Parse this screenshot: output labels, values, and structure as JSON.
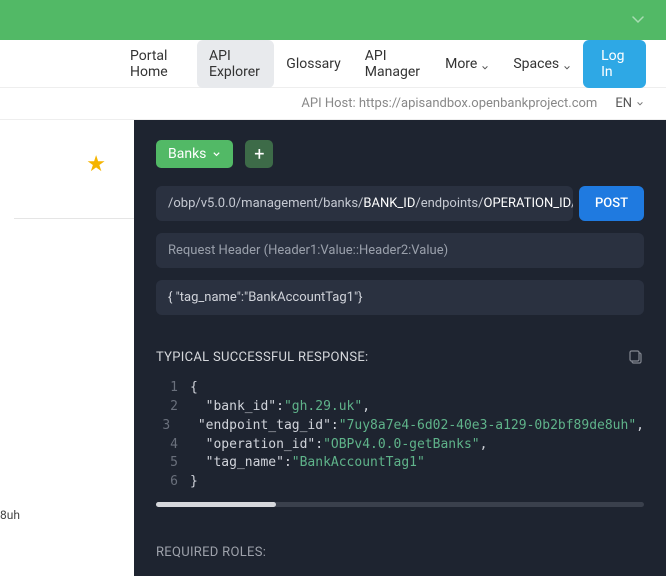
{
  "nav": {
    "items": [
      {
        "label": "Portal Home",
        "active": false
      },
      {
        "label": "API Explorer",
        "active": true
      },
      {
        "label": "Glossary",
        "active": false
      },
      {
        "label": "API Manager",
        "active": false
      },
      {
        "label": "More",
        "active": false,
        "dropdown": true
      },
      {
        "label": "Spaces",
        "active": false,
        "dropdown": true
      }
    ],
    "login": "Log In"
  },
  "subbar": {
    "api_host_label": "API Host: https://apisandbox.openbankproject.com",
    "lang": "EN"
  },
  "left": {
    "fragment": "8uh"
  },
  "controls": {
    "banks_label": "Banks",
    "plus": "+"
  },
  "request": {
    "path_segments": [
      {
        "t": "/obp/v5.0.0/management/banks/",
        "hl": false
      },
      {
        "t": "BANK_ID",
        "hl": true
      },
      {
        "t": "/endpoints/",
        "hl": false
      },
      {
        "t": "OPERATION_ID",
        "hl": true
      },
      {
        "t": "/tags",
        "hl": false
      }
    ],
    "method": "POST",
    "header_placeholder": "Request Header (Header1:Value::Header2:Value)",
    "body": "{  \"tag_name\":\"BankAccountTag1\"}"
  },
  "response": {
    "title": "TYPICAL SUCCESSFUL RESPONSE:",
    "lines": [
      {
        "n": "1",
        "tokens": [
          {
            "c": "brace",
            "t": "{"
          }
        ]
      },
      {
        "n": "2",
        "tokens": [
          {
            "c": "indent",
            "t": "  "
          },
          {
            "c": "key",
            "t": "\"bank_id\""
          },
          {
            "c": "punct",
            "t": ":"
          },
          {
            "c": "str",
            "t": "\"gh.29.uk\""
          },
          {
            "c": "punct",
            "t": ","
          }
        ]
      },
      {
        "n": "3",
        "tokens": [
          {
            "c": "indent",
            "t": "  "
          },
          {
            "c": "key",
            "t": "\"endpoint_tag_id\""
          },
          {
            "c": "punct",
            "t": ":"
          },
          {
            "c": "str",
            "t": "\"7uy8a7e4-6d02-40e3-a129-0b2bf89de8uh\""
          },
          {
            "c": "punct",
            "t": ","
          }
        ]
      },
      {
        "n": "4",
        "tokens": [
          {
            "c": "indent",
            "t": "  "
          },
          {
            "c": "key",
            "t": "\"operation_id\""
          },
          {
            "c": "punct",
            "t": ":"
          },
          {
            "c": "str",
            "t": "\"OBPv4.0.0-getBanks\""
          },
          {
            "c": "punct",
            "t": ","
          }
        ]
      },
      {
        "n": "5",
        "tokens": [
          {
            "c": "indent",
            "t": "  "
          },
          {
            "c": "key",
            "t": "\"tag_name\""
          },
          {
            "c": "punct",
            "t": ":"
          },
          {
            "c": "str",
            "t": "\"BankAccountTag1\""
          }
        ]
      },
      {
        "n": "6",
        "tokens": [
          {
            "c": "brace",
            "t": "}"
          }
        ]
      }
    ]
  },
  "required_roles": {
    "title": "REQUIRED ROLES:"
  },
  "colors": {
    "banner": "#52b966",
    "panel_bg": "#1e2430",
    "input_bg": "#2a3140",
    "post_btn": "#1f7ae0",
    "login_btn": "#2ea8e5",
    "string_color": "#5fb38a",
    "star": "#f5b400"
  }
}
